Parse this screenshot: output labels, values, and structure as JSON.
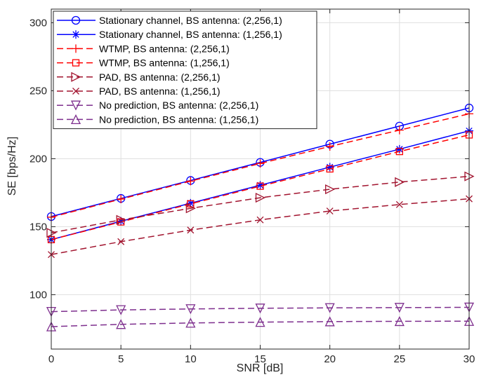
{
  "chart_data": {
    "type": "line",
    "title": "",
    "xlabel": "SNR [dB]",
    "ylabel": "SE [bps/Hz]",
    "xlim": [
      0,
      30
    ],
    "ylim": [
      60,
      310
    ],
    "xticks": [
      0,
      5,
      10,
      15,
      20,
      25,
      30
    ],
    "yticks": [
      100,
      150,
      200,
      250,
      300
    ],
    "grid": true,
    "legend_position": "top-left",
    "x": [
      0,
      5,
      10,
      15,
      20,
      25,
      30
    ],
    "series": [
      {
        "name": "Stationary channel, BS antenna: (2,256,1)",
        "color": "#0000ff",
        "dash": "solid",
        "marker": "circle",
        "values": [
          157.5,
          170.8,
          184.0,
          197.3,
          210.7,
          224.0,
          237.3
        ]
      },
      {
        "name": "Stationary channel, BS antenna: (1,256,1)",
        "color": "#0000ff",
        "dash": "solid",
        "marker": "asterisk",
        "values": [
          140.5,
          154.0,
          167.3,
          180.5,
          193.8,
          207.0,
          220.5
        ]
      },
      {
        "name": "WTMP, BS antenna: (2,256,1)",
        "color": "#ff0000",
        "dash": "dashed",
        "marker": "plus",
        "values": [
          157.0,
          170.3,
          183.5,
          196.5,
          209.0,
          221.0,
          233.0
        ]
      },
      {
        "name": "WTMP, BS antenna: (1,256,1)",
        "color": "#ff0000",
        "dash": "dashed",
        "marker": "square",
        "values": [
          140.5,
          153.5,
          166.8,
          179.8,
          192.5,
          205.3,
          217.5
        ]
      },
      {
        "name": "PAD, BS antenna: (2,256,1)",
        "color": "#a2142f",
        "dash": "dashed",
        "marker": "triangle-right",
        "values": [
          145.5,
          155.0,
          163.5,
          171.3,
          177.5,
          182.8,
          187.0
        ]
      },
      {
        "name": "PAD, BS antenna: (1,256,1)",
        "color": "#a2142f",
        "dash": "dashed",
        "marker": "x",
        "values": [
          129.5,
          139.0,
          147.5,
          155.0,
          161.5,
          166.3,
          170.5
        ]
      },
      {
        "name": "No prediction, BS antenna: (2,256,1)",
        "color": "#7e2f8e",
        "dash": "dashed",
        "marker": "triangle-down",
        "values": [
          87.5,
          88.8,
          89.5,
          90.0,
          90.3,
          90.5,
          90.7
        ]
      },
      {
        "name": "No prediction, BS antenna: (1,256,1)",
        "color": "#7e2f8e",
        "dash": "dashed",
        "marker": "triangle-up",
        "values": [
          76.5,
          78.2,
          79.2,
          79.8,
          80.2,
          80.4,
          80.5
        ]
      }
    ]
  }
}
